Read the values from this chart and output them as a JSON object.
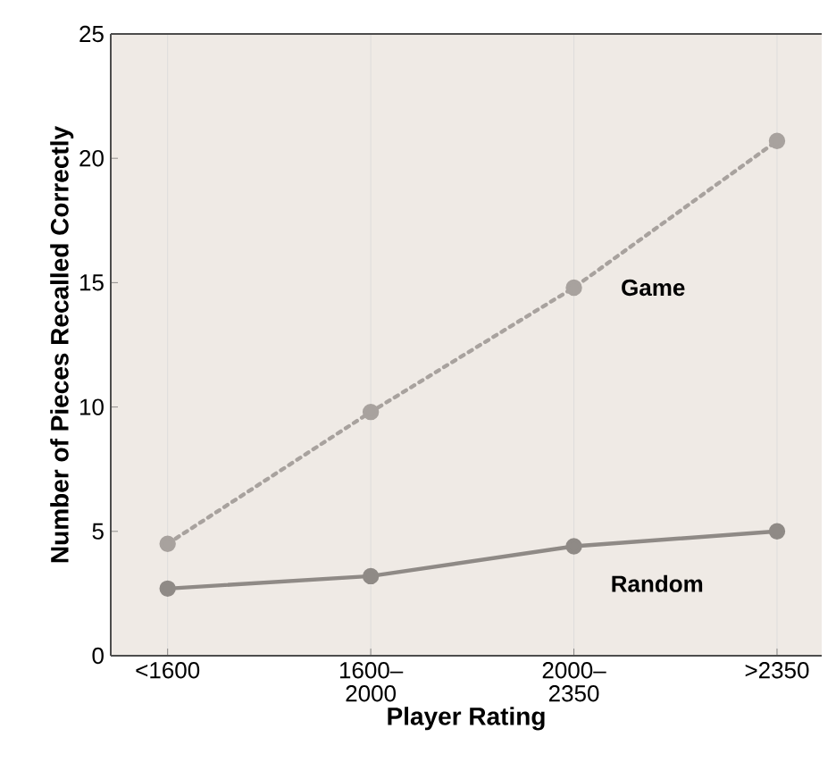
{
  "chart_data": {
    "type": "line",
    "xlabel": "Player Rating",
    "ylabel": "Number of Pieces  Recalled Correctly",
    "categories": [
      "<1600",
      "1600–\n2000",
      "2000–\n2350",
      ">2350"
    ],
    "series": [
      {
        "name": "Game",
        "color": "#a8a29e",
        "values": [
          4.5,
          9.8,
          14.8,
          20.7
        ],
        "line_style": "dotted"
      },
      {
        "name": "Random",
        "color": "#8f8a86",
        "values": [
          2.7,
          3.2,
          4.4,
          5.0
        ],
        "line_style": "solid"
      }
    ],
    "ylim": [
      0,
      25
    ],
    "yticks": [
      0,
      5,
      10,
      15,
      20,
      25
    ],
    "grid": "x",
    "marker": "circle"
  }
}
